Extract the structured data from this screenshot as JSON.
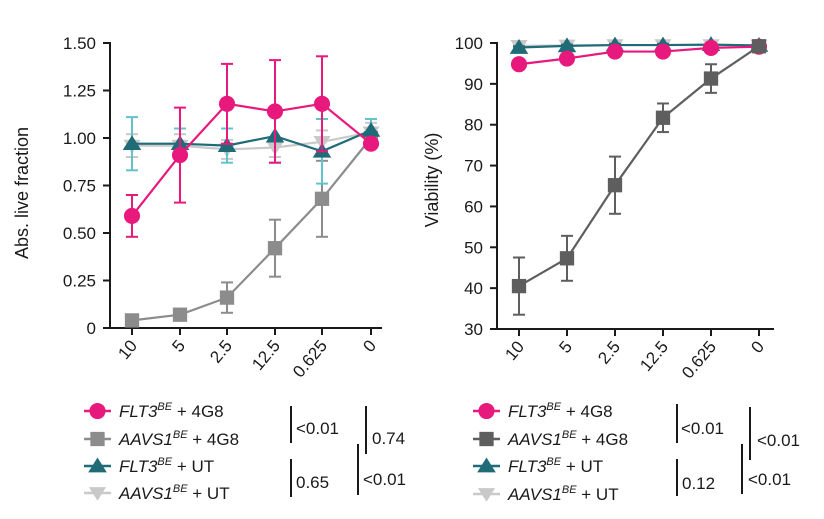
{
  "colors": {
    "flt3_4g8": "#e8197d",
    "aavs1_4g8_left": "#8c8c8c",
    "aavs1_4g8_right": "#5e5e5e",
    "flt3_ut": "#1f6b78",
    "flt3_ut_err": "#63c3cc",
    "aavs1_ut": "#c9c9c9",
    "axis": "#1a1a1a"
  },
  "chart_data": [
    {
      "type": "line",
      "title": "",
      "xlabel": "",
      "ylabel": "Abs. live fraction",
      "categories": [
        "10",
        "5",
        "2.5",
        "12.5",
        "0.625",
        "0"
      ],
      "ylim": [
        0,
        1.5
      ],
      "yticks": [
        "0",
        "0.25",
        "0.50",
        "0.75",
        "1.00",
        "1.25",
        "1.50"
      ],
      "ytick_values": [
        0,
        0.25,
        0.5,
        0.75,
        1.0,
        1.25,
        1.5
      ],
      "series": [
        {
          "name": "AAVS1BE + UT",
          "values": [
            0.96,
            0.96,
            0.94,
            0.95,
            0.98,
            1.03
          ],
          "errors": [
            0.06,
            0.06,
            0.05,
            0.05,
            0.06,
            0.05
          ],
          "marker": "triangle-down",
          "color_key": "aavs1_ut",
          "err_color_key": "aavs1_ut"
        },
        {
          "name": "AAVS1BE + 4G8",
          "values": [
            0.04,
            0.07,
            0.16,
            0.42,
            0.68,
            1.0
          ],
          "errors": [
            0.0,
            0.0,
            0.08,
            0.15,
            0.2,
            0.0
          ],
          "marker": "square",
          "color_key": "aavs1_4g8_left",
          "err_color_key": "aavs1_4g8_left"
        },
        {
          "name": "FLT3BE + UT",
          "values": [
            0.97,
            0.97,
            0.96,
            1.01,
            0.93,
            1.04
          ],
          "errors": [
            0.14,
            0.08,
            0.09,
            0.14,
            0.17,
            0.06
          ],
          "marker": "triangle-up",
          "color_key": "flt3_ut",
          "err_color_key": "flt3_ut_err"
        },
        {
          "name": "FLT3BE + 4G8",
          "values": [
            0.59,
            0.91,
            1.18,
            1.14,
            1.18,
            0.97
          ],
          "errors": [
            0.11,
            0.25,
            0.21,
            0.27,
            0.25,
            0.0
          ],
          "marker": "circle",
          "color_key": "flt3_4g8",
          "err_color_key": "flt3_4g8"
        }
      ],
      "legend": [
        {
          "prefix": "FLT3",
          "sup": "BE",
          "suffix": " + 4G8",
          "marker": "circle",
          "color_key": "flt3_4g8"
        },
        {
          "prefix": "AAVS1",
          "sup": "BE",
          "suffix": " + 4G8",
          "marker": "square",
          "color_key": "aavs1_4g8_left"
        },
        {
          "prefix": "FLT3",
          "sup": "BE",
          "suffix": " + UT",
          "marker": "triangle-up",
          "color_key": "flt3_ut"
        },
        {
          "prefix": "AAVS1",
          "sup": "BE",
          "suffix": " + UT",
          "marker": "triangle-down",
          "color_key": "aavs1_ut"
        }
      ],
      "pvalues": [
        "<0.01",
        "0.74",
        "0.65",
        "<0.01"
      ]
    },
    {
      "type": "line",
      "title": "",
      "xlabel": "",
      "ylabel": "Viability (%)",
      "categories": [
        "10",
        "5",
        "2.5",
        "12.5",
        "0.625",
        "0"
      ],
      "ylim": [
        30,
        100
      ],
      "yticks": [
        "30",
        "40",
        "50",
        "60",
        "70",
        "80",
        "90",
        "100"
      ],
      "ytick_values": [
        30,
        40,
        50,
        60,
        70,
        80,
        90,
        100
      ],
      "series": [
        {
          "name": "AAVS1BE + UT",
          "values": [
            99.3,
            99.4,
            99.5,
            99.5,
            99.5,
            99.4
          ],
          "errors": [
            0.3,
            0.3,
            0.3,
            0.3,
            0.3,
            0.3
          ],
          "marker": "triangle-down",
          "color_key": "aavs1_ut",
          "err_color_key": "aavs1_ut"
        },
        {
          "name": "FLT3BE + UT",
          "values": [
            98.9,
            99.3,
            99.5,
            99.5,
            99.6,
            99.4
          ],
          "errors": [
            0.3,
            0.3,
            0.3,
            0.3,
            0.3,
            0.3
          ],
          "marker": "triangle-up",
          "color_key": "flt3_ut",
          "err_color_key": "flt3_ut"
        },
        {
          "name": "FLT3BE + 4G8",
          "values": [
            94.8,
            96.2,
            97.9,
            97.9,
            98.8,
            99.1
          ],
          "errors": [
            0,
            0,
            0,
            0,
            0,
            0
          ],
          "marker": "circle",
          "color_key": "flt3_4g8",
          "err_color_key": "flt3_4g8"
        },
        {
          "name": "AAVS1BE + 4G8",
          "values": [
            40.5,
            47.3,
            65.2,
            81.7,
            91.3,
            99.2
          ],
          "errors": [
            7.0,
            5.5,
            7.0,
            3.5,
            3.5,
            0.3
          ],
          "marker": "square",
          "color_key": "aavs1_4g8_right",
          "err_color_key": "aavs1_4g8_right"
        }
      ],
      "legend": [
        {
          "prefix": "FLT3",
          "sup": "BE",
          "suffix": " + 4G8",
          "marker": "circle",
          "color_key": "flt3_4g8"
        },
        {
          "prefix": "AAVS1",
          "sup": "BE",
          "suffix": " + 4G8",
          "marker": "square",
          "color_key": "aavs1_4g8_right"
        },
        {
          "prefix": "FLT3",
          "sup": "BE",
          "suffix": " + UT",
          "marker": "triangle-up",
          "color_key": "flt3_ut"
        },
        {
          "prefix": "AAVS1",
          "sup": "BE",
          "suffix": " + UT",
          "marker": "triangle-down",
          "color_key": "aavs1_ut"
        }
      ],
      "pvalues": [
        "<0.01",
        "<0.01",
        "0.12",
        "<0.01"
      ]
    }
  ]
}
